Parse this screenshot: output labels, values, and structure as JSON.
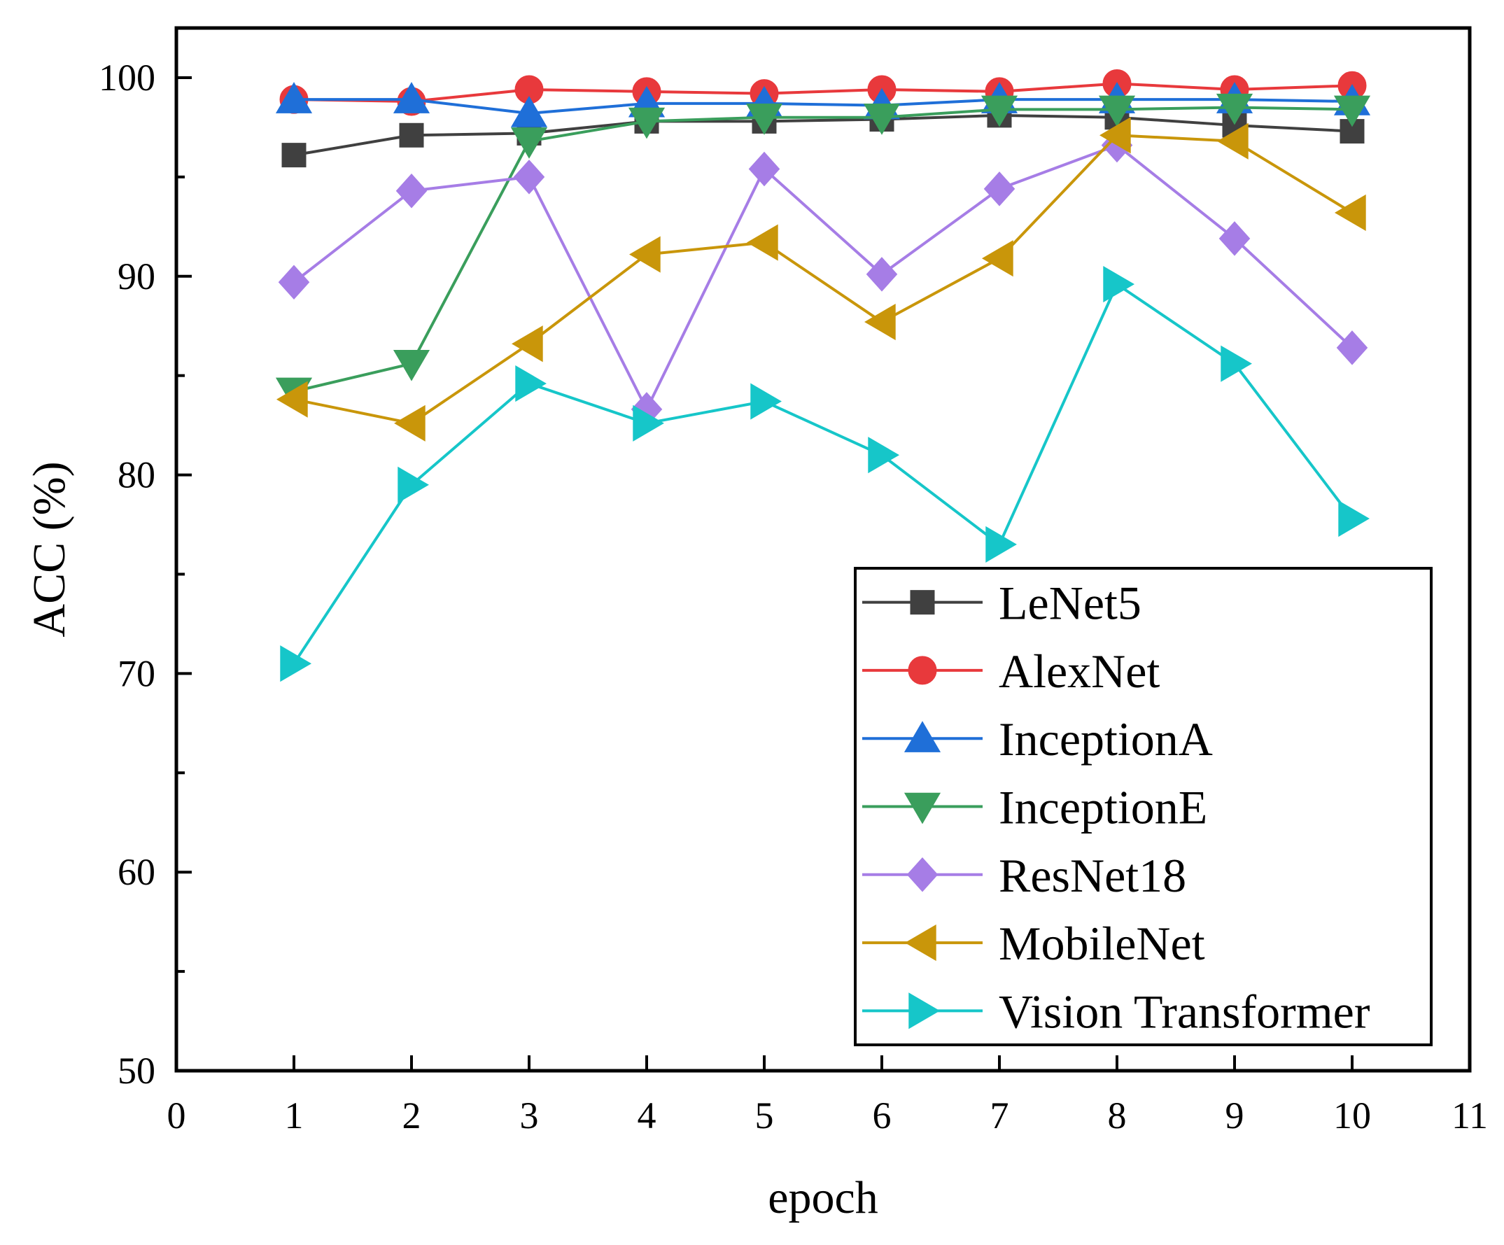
{
  "chart_data": {
    "type": "line",
    "title": "",
    "xlabel": "epoch",
    "ylabel": "ACC (%)",
    "xlim": [
      0,
      11
    ],
    "ylim": [
      50,
      102.5
    ],
    "xticks": [
      0,
      1,
      2,
      3,
      4,
      5,
      6,
      7,
      8,
      9,
      10,
      11
    ],
    "yticks": [
      50,
      60,
      70,
      80,
      90,
      100
    ],
    "xtick_labels": [
      "0",
      "1",
      "2",
      "3",
      "4",
      "5",
      "6",
      "7",
      "8",
      "9",
      "10",
      "11"
    ],
    "ytick_labels": [
      "50",
      "60",
      "70",
      "80",
      "90",
      "100"
    ],
    "grid": false,
    "legend_position": "bottom-right",
    "x": [
      1,
      2,
      3,
      4,
      5,
      6,
      7,
      8,
      9,
      10
    ],
    "series": [
      {
        "name": "LeNet5",
        "color": "#404040",
        "marker": "square",
        "values": [
          96.1,
          97.1,
          97.2,
          97.8,
          97.8,
          97.9,
          98.1,
          98.0,
          97.6,
          97.3
        ]
      },
      {
        "name": "AlexNet",
        "color": "#e8393c",
        "marker": "circle",
        "values": [
          98.9,
          98.8,
          99.4,
          99.3,
          99.2,
          99.4,
          99.3,
          99.7,
          99.4,
          99.6
        ]
      },
      {
        "name": "InceptionA",
        "color": "#1f6fd8",
        "marker": "triangle-up",
        "values": [
          98.9,
          98.9,
          98.2,
          98.7,
          98.7,
          98.6,
          98.9,
          98.9,
          98.9,
          98.8
        ]
      },
      {
        "name": "InceptionE",
        "color": "#3a9e5c",
        "marker": "triangle-down",
        "values": [
          84.2,
          85.6,
          96.8,
          97.8,
          98.0,
          98.0,
          98.4,
          98.4,
          98.5,
          98.4
        ]
      },
      {
        "name": "ResNet18",
        "color": "#a67de6",
        "marker": "diamond",
        "values": [
          89.7,
          94.3,
          95.0,
          83.3,
          95.4,
          90.1,
          94.4,
          96.6,
          91.9,
          86.4
        ]
      },
      {
        "name": "MobileNet",
        "color": "#c9960a",
        "marker": "triangle-left",
        "values": [
          83.8,
          82.6,
          86.6,
          91.1,
          91.7,
          87.7,
          90.9,
          97.1,
          96.8,
          93.2
        ]
      },
      {
        "name": "Vision Transformer",
        "color": "#16c6c9",
        "marker": "triangle-right",
        "values": [
          70.5,
          79.5,
          84.6,
          82.6,
          83.7,
          81.0,
          76.5,
          89.6,
          85.6,
          77.8
        ]
      }
    ]
  }
}
